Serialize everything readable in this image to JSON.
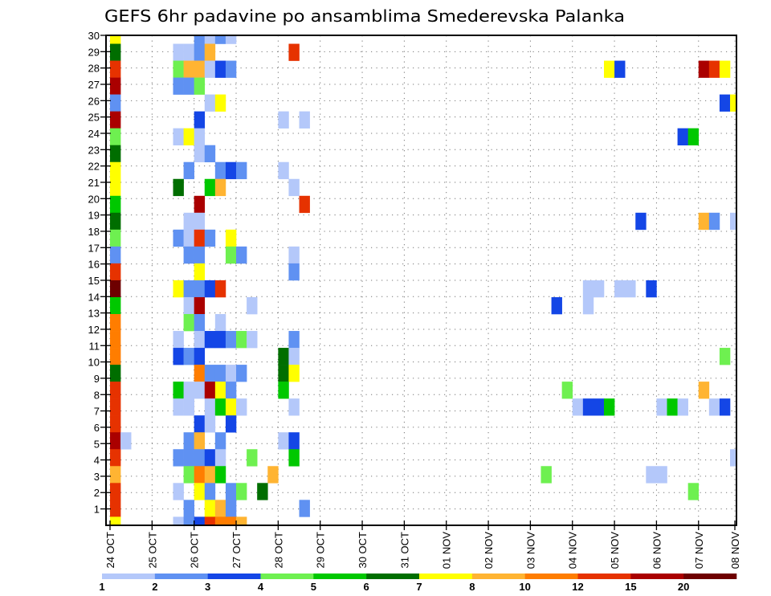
{
  "chart_data": {
    "type": "heatmap",
    "title": "GEFS 6hr padavine po ansamblima Smederevska Palanka",
    "xlabel": "",
    "ylabel": "",
    "x_ticks": [
      "24 OCT",
      "25 OCT",
      "26 OCT",
      "27 OCT",
      "28 OCT",
      "29 OCT",
      "30 OCT",
      "31 OCT",
      "01 NOV",
      "02 NOV",
      "03 NOV",
      "04 NOV",
      "05 NOV",
      "06 NOV",
      "07 NOV",
      "08 NOV"
    ],
    "x_steps_per_day": 4,
    "y_ticks": [
      "1",
      "2",
      "3",
      "4",
      "5",
      "6",
      "7",
      "8",
      "9",
      "10",
      "11",
      "12",
      "13",
      "14",
      "15",
      "16",
      "17",
      "18",
      "19",
      "20",
      "21",
      "22",
      "23",
      "24",
      "25",
      "26",
      "27",
      "28",
      "29",
      "30"
    ],
    "legend": {
      "placement": "bottom",
      "labels": [
        "1",
        "2",
        "3",
        "4",
        "5",
        "6",
        "7",
        "8",
        "10",
        "12",
        "15",
        "20"
      ],
      "colors": [
        "#b4c8fa",
        "#5f91f2",
        "#1446e6",
        "#6ef050",
        "#00c800",
        "#006e00",
        "#ffff00",
        "#ffb432",
        "#ff7d00",
        "#e63200",
        "#aa0000",
        "#6e0000"
      ]
    },
    "cell_code_key": "a-l = legend bin 0-11 (a: 1-2, b: 2-3, c: 3-4, d: 4-5, e: 5-6, f: 6-7, g: 7-8, h: 8-10, i: 10-12, j: 12-15, k: 15-20, l: >20); '.' = below 1",
    "row_order": "top-to-bottom",
    "rows": [
      "g.......baba........................................................",
      "f.....aabh.......j.................................................a",
      "j.....dhhacb...................................gc.......kjg.",
      "k.....bbd...................................................",
      "b........ag...............................................cg",
      "k.......c.......a.a.........................................",
      "d.....aga.............................................ce.....",
      "f.......ab..................................................",
      "g......b..bcb...a...........................................",
      "g.....f..eh......a..........................................",
      "e.......k.........j.........................................",
      "f......aa.........................................c.....hb.a",
      "d.....bajb.g................................................",
      "b......bb..db....a..........................................",
      "j.......g........b..........................................",
      "l.....gbbcj..................................aa.aa.c........",
      "e......ak....a............................c..a..............",
      "i......db.a.................................................",
      "i.....a.accbda...b..........................................",
      "i.....cbc.......fa........................................d.",
      "f.......ibbab...fg..........................................",
      "j.....eaakgb....e..........................d............h...",
      "j.....aa.aega....a..........................acce....aea..ac.",
      "j.......ca.c................................................",
      "ka.....bh.b.....ac..........................................",
      "j.....bbbca..d...e.........................................a",
      "h......dihe....h.........................d.........aa.......",
      "j.....a.gb.bd.f........................................d....",
      "j......b.ghb......b.........................................",
      "g.....abcjiih..............................................."
    ]
  }
}
